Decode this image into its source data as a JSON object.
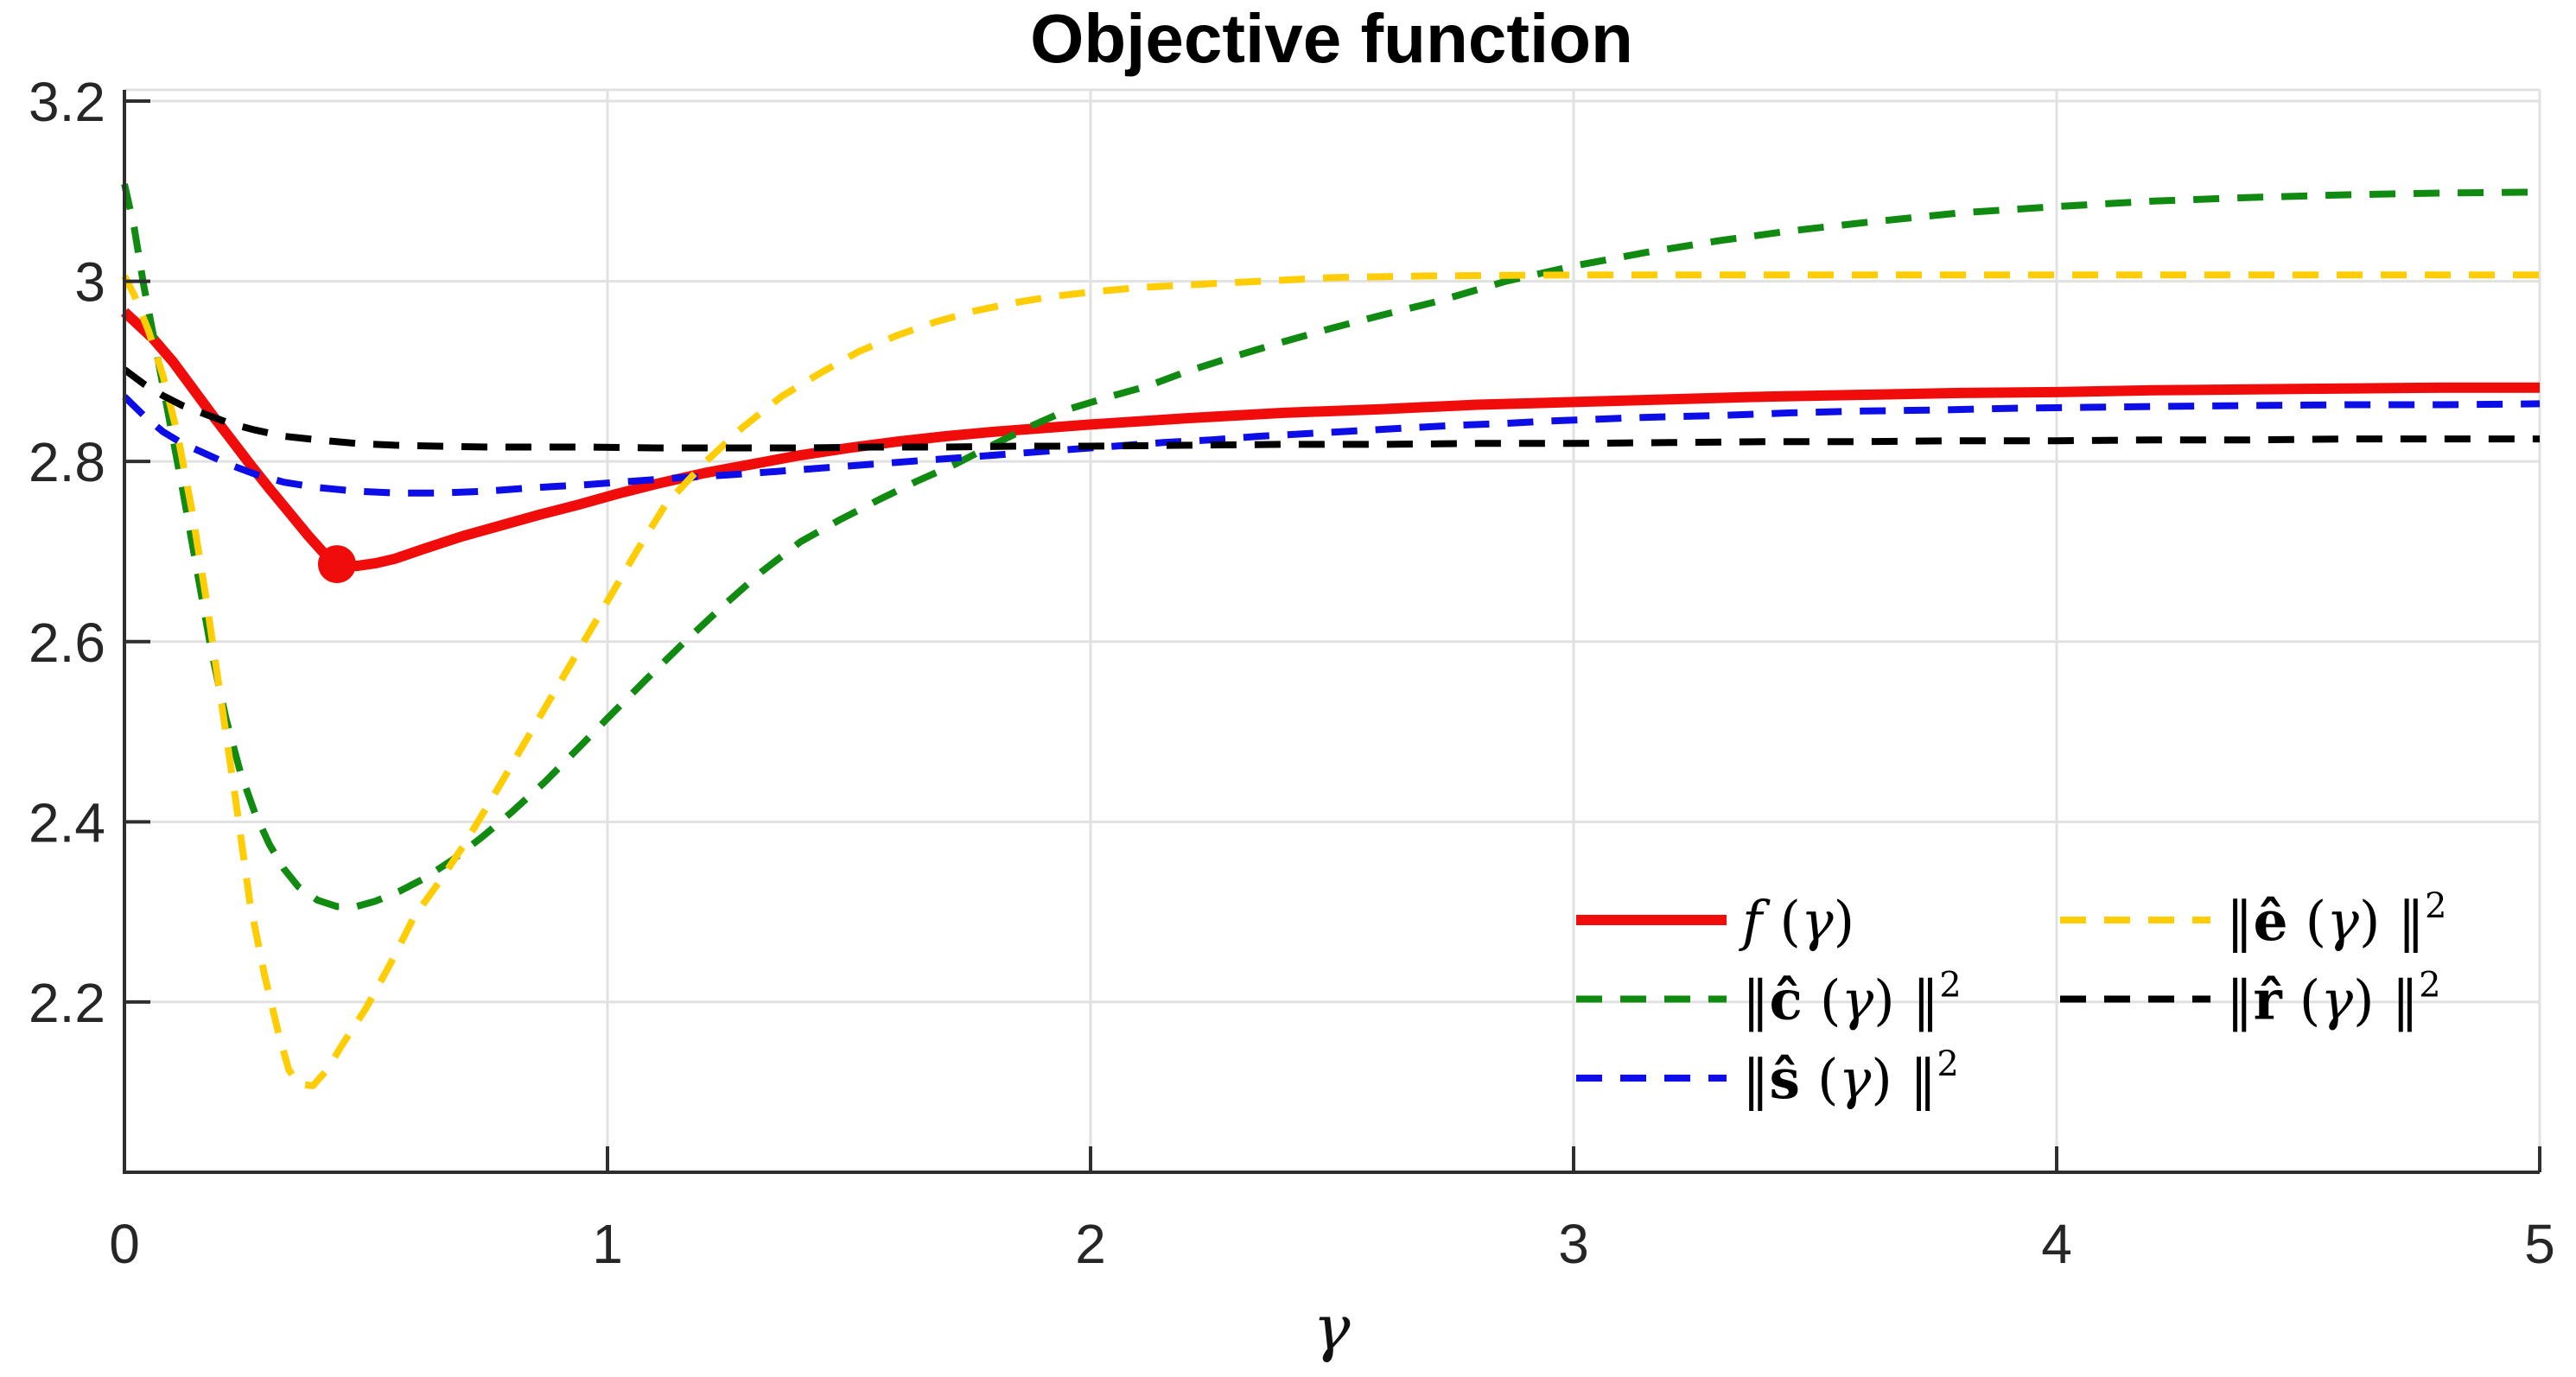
{
  "figure": {
    "background": "#FFFFFF"
  },
  "chart_data": {
    "type": "line",
    "title": "Objective function",
    "xlabel": "γ",
    "ylabel": "",
    "xlim": [
      0,
      5
    ],
    "ylim": [
      2.011,
      3.2125
    ],
    "grid": true,
    "legend_position": "lower right, two columns, no frame",
    "style": {
      "grid_color": "#E1E1E1",
      "axis_color": "#2E2E2E",
      "text_color": "#262626",
      "dash_pattern": "30 21"
    },
    "xticks": [
      {
        "value": 0,
        "label": "0"
      },
      {
        "value": 1,
        "label": "1"
      },
      {
        "value": 2,
        "label": "2"
      },
      {
        "value": 3,
        "label": "3"
      },
      {
        "value": 4,
        "label": "4"
      },
      {
        "value": 5,
        "label": "5"
      }
    ],
    "yticks": [
      {
        "value": 2.2,
        "label": "2.2"
      },
      {
        "value": 2.4,
        "label": "2.4"
      },
      {
        "value": 2.6,
        "label": "2.6"
      },
      {
        "value": 2.8,
        "label": "2.8"
      },
      {
        "value": 3.0,
        "label": "3"
      },
      {
        "value": 3.2,
        "label": "3.2"
      }
    ],
    "marker": {
      "series": "f",
      "x": 0.44,
      "y": 2.686,
      "radius": 22,
      "color": "#F10C0C"
    },
    "series": [
      {
        "id": "f",
        "name": "f(γ)",
        "color": "#F10C0C",
        "dash": "solid",
        "line_width": 12,
        "legend": {
          "column": 1,
          "row": 1,
          "label": "f (γ)",
          "parts": [
            {
              "t": "f",
              "style": "italic"
            },
            {
              "t": " ("
            },
            {
              "t": "γ",
              "style": "italic"
            },
            {
              "t": ")"
            }
          ]
        },
        "points": [
          [
            0,
            2.966
          ],
          [
            0.03,
            2.951
          ],
          [
            0.06,
            2.936
          ],
          [
            0.1,
            2.911
          ],
          [
            0.14,
            2.882
          ],
          [
            0.18,
            2.853
          ],
          [
            0.22,
            2.825
          ],
          [
            0.26,
            2.797
          ],
          [
            0.3,
            2.77
          ],
          [
            0.34,
            2.744
          ],
          [
            0.38,
            2.718
          ],
          [
            0.41,
            2.7
          ],
          [
            0.44,
            2.687
          ],
          [
            0.48,
            2.684
          ],
          [
            0.52,
            2.687
          ],
          [
            0.56,
            2.692
          ],
          [
            0.62,
            2.703
          ],
          [
            0.7,
            2.717
          ],
          [
            0.78,
            2.729
          ],
          [
            0.86,
            2.741
          ],
          [
            0.94,
            2.752
          ],
          [
            1.02,
            2.764
          ],
          [
            1.1,
            2.775
          ],
          [
            1.2,
            2.787
          ],
          [
            1.3,
            2.797
          ],
          [
            1.4,
            2.807
          ],
          [
            1.5,
            2.815
          ],
          [
            1.6,
            2.822
          ],
          [
            1.7,
            2.828
          ],
          [
            1.8,
            2.833
          ],
          [
            1.9,
            2.837
          ],
          [
            2.0,
            2.841
          ],
          [
            2.2,
            2.848
          ],
          [
            2.4,
            2.854
          ],
          [
            2.6,
            2.858
          ],
          [
            2.8,
            2.863
          ],
          [
            3.0,
            2.866
          ],
          [
            3.2,
            2.869
          ],
          [
            3.4,
            2.872
          ],
          [
            3.6,
            2.874
          ],
          [
            3.8,
            2.876
          ],
          [
            4.0,
            2.877
          ],
          [
            4.2,
            2.879
          ],
          [
            4.4,
            2.88
          ],
          [
            4.6,
            2.881
          ],
          [
            4.8,
            2.882
          ],
          [
            5.0,
            2.882
          ]
        ]
      },
      {
        "id": "c_hat",
        "name": "||ĉ(γ)||²",
        "color": "#118A11",
        "dash": "dashed",
        "line_width": 8,
        "legend": {
          "column": 1,
          "row": 2,
          "label": "‖ĉ (γ)‖²",
          "parts": [
            {
              "t": "‖"
            },
            {
              "t": "ĉ",
              "style": "bold"
            },
            {
              "t": " ("
            },
            {
              "t": "γ",
              "style": "italic"
            },
            {
              "t": ") "
            },
            {
              "t": "‖"
            },
            {
              "t": "2",
              "style": "sup"
            }
          ]
        },
        "points": [
          [
            0,
            3.108
          ],
          [
            0.02,
            3.06
          ],
          [
            0.04,
            2.995
          ],
          [
            0.06,
            2.94
          ],
          [
            0.09,
            2.855
          ],
          [
            0.12,
            2.77
          ],
          [
            0.15,
            2.68
          ],
          [
            0.18,
            2.59
          ],
          [
            0.21,
            2.515
          ],
          [
            0.24,
            2.455
          ],
          [
            0.27,
            2.41
          ],
          [
            0.3,
            2.375
          ],
          [
            0.33,
            2.348
          ],
          [
            0.36,
            2.328
          ],
          [
            0.4,
            2.313
          ],
          [
            0.44,
            2.306
          ],
          [
            0.48,
            2.306
          ],
          [
            0.52,
            2.312
          ],
          [
            0.57,
            2.323
          ],
          [
            0.62,
            2.337
          ],
          [
            0.68,
            2.358
          ],
          [
            0.74,
            2.383
          ],
          [
            0.8,
            2.41
          ],
          [
            0.87,
            2.444
          ],
          [
            0.94,
            2.482
          ],
          [
            1.0,
            2.515
          ],
          [
            1.08,
            2.558
          ],
          [
            1.16,
            2.6
          ],
          [
            1.24,
            2.64
          ],
          [
            1.32,
            2.678
          ],
          [
            1.4,
            2.711
          ],
          [
            1.48,
            2.735
          ],
          [
            1.56,
            2.757
          ],
          [
            1.64,
            2.778
          ],
          [
            1.72,
            2.797
          ],
          [
            1.8,
            2.819
          ],
          [
            1.88,
            2.84
          ],
          [
            1.96,
            2.859
          ],
          [
            2.04,
            2.872
          ],
          [
            2.12,
            2.884
          ],
          [
            2.2,
            2.9
          ],
          [
            2.3,
            2.917
          ],
          [
            2.4,
            2.933
          ],
          [
            2.5,
            2.948
          ],
          [
            2.6,
            2.962
          ],
          [
            2.72,
            2.978
          ],
          [
            2.86,
            3.0
          ],
          [
            3.0,
            3.017
          ],
          [
            3.15,
            3.032
          ],
          [
            3.3,
            3.045
          ],
          [
            3.45,
            3.056
          ],
          [
            3.6,
            3.065
          ],
          [
            3.8,
            3.076
          ],
          [
            4.0,
            3.083
          ],
          [
            4.2,
            3.089
          ],
          [
            4.4,
            3.093
          ],
          [
            4.6,
            3.096
          ],
          [
            4.8,
            3.098
          ],
          [
            5.0,
            3.099
          ]
        ]
      },
      {
        "id": "s_hat",
        "name": "||ŝ(γ)||²",
        "color": "#0D0DE8",
        "dash": "dashed",
        "line_width": 8,
        "legend": {
          "column": 1,
          "row": 3,
          "label": "‖ŝ (γ)‖²",
          "parts": [
            {
              "t": "‖"
            },
            {
              "t": "ŝ",
              "style": "bold"
            },
            {
              "t": " ("
            },
            {
              "t": "γ",
              "style": "italic"
            },
            {
              "t": ") "
            },
            {
              "t": "‖"
            },
            {
              "t": "2",
              "style": "sup"
            }
          ]
        },
        "points": [
          [
            0,
            2.872
          ],
          [
            0.04,
            2.851
          ],
          [
            0.08,
            2.833
          ],
          [
            0.12,
            2.82
          ],
          [
            0.17,
            2.808
          ],
          [
            0.22,
            2.796
          ],
          [
            0.27,
            2.786
          ],
          [
            0.33,
            2.777
          ],
          [
            0.4,
            2.771
          ],
          [
            0.48,
            2.767
          ],
          [
            0.56,
            2.765
          ],
          [
            0.65,
            2.765
          ],
          [
            0.75,
            2.767
          ],
          [
            0.85,
            2.771
          ],
          [
            0.95,
            2.774
          ],
          [
            1.05,
            2.778
          ],
          [
            1.15,
            2.782
          ],
          [
            1.25,
            2.785
          ],
          [
            1.35,
            2.789
          ],
          [
            1.45,
            2.793
          ],
          [
            1.55,
            2.797
          ],
          [
            1.65,
            2.801
          ],
          [
            1.75,
            2.805
          ],
          [
            1.85,
            2.809
          ],
          [
            1.95,
            2.813
          ],
          [
            2.05,
            2.817
          ],
          [
            2.15,
            2.821
          ],
          [
            2.25,
            2.824
          ],
          [
            2.35,
            2.828
          ],
          [
            2.45,
            2.831
          ],
          [
            2.55,
            2.834
          ],
          [
            2.65,
            2.837
          ],
          [
            2.75,
            2.84
          ],
          [
            2.85,
            2.842
          ],
          [
            2.95,
            2.845
          ],
          [
            3.05,
            2.847
          ],
          [
            3.15,
            2.849
          ],
          [
            3.3,
            2.851
          ],
          [
            3.45,
            2.854
          ],
          [
            3.6,
            2.856
          ],
          [
            3.75,
            2.857
          ],
          [
            3.9,
            2.859
          ],
          [
            4.05,
            2.86
          ],
          [
            4.2,
            2.861
          ],
          [
            4.4,
            2.862
          ],
          [
            4.6,
            2.863
          ],
          [
            4.8,
            2.863
          ],
          [
            5.0,
            2.864
          ]
        ]
      },
      {
        "id": "e_hat",
        "name": "||ê(γ)||²",
        "color": "#FFCD06",
        "dash": "dashed",
        "line_width": 8,
        "legend": {
          "column": 2,
          "row": 1,
          "label": "‖ê (γ)‖²",
          "parts": [
            {
              "t": "‖"
            },
            {
              "t": "ê",
              "style": "bold"
            },
            {
              "t": " ("
            },
            {
              "t": "γ",
              "style": "italic"
            },
            {
              "t": ") "
            },
            {
              "t": "‖"
            },
            {
              "t": "2",
              "style": "sup"
            }
          ]
        },
        "points": [
          [
            0,
            3.006
          ],
          [
            0.02,
            2.985
          ],
          [
            0.05,
            2.945
          ],
          [
            0.08,
            2.895
          ],
          [
            0.11,
            2.83
          ],
          [
            0.14,
            2.745
          ],
          [
            0.17,
            2.645
          ],
          [
            0.2,
            2.535
          ],
          [
            0.23,
            2.425
          ],
          [
            0.26,
            2.31
          ],
          [
            0.29,
            2.23
          ],
          [
            0.32,
            2.163
          ],
          [
            0.34,
            2.125
          ],
          [
            0.36,
            2.109
          ],
          [
            0.39,
            2.107
          ],
          [
            0.42,
            2.125
          ],
          [
            0.45,
            2.152
          ],
          [
            0.5,
            2.193
          ],
          [
            0.55,
            2.242
          ],
          [
            0.6,
            2.295
          ],
          [
            0.65,
            2.332
          ],
          [
            0.7,
            2.372
          ],
          [
            0.76,
            2.425
          ],
          [
            0.82,
            2.48
          ],
          [
            0.88,
            2.535
          ],
          [
            0.94,
            2.59
          ],
          [
            1.0,
            2.645
          ],
          [
            1.06,
            2.7
          ],
          [
            1.12,
            2.752
          ],
          [
            1.2,
            2.798
          ],
          [
            1.28,
            2.838
          ],
          [
            1.36,
            2.872
          ],
          [
            1.44,
            2.898
          ],
          [
            1.52,
            2.922
          ],
          [
            1.6,
            2.94
          ],
          [
            1.68,
            2.955
          ],
          [
            1.76,
            2.967
          ],
          [
            1.84,
            2.976
          ],
          [
            1.92,
            2.983
          ],
          [
            2.0,
            2.988
          ],
          [
            2.1,
            2.993
          ],
          [
            2.2,
            2.996
          ],
          [
            2.35,
            3.0
          ],
          [
            2.5,
            3.004
          ],
          [
            2.7,
            3.006
          ],
          [
            3.0,
            3.007
          ],
          [
            3.5,
            3.007
          ],
          [
            4.0,
            3.007
          ],
          [
            4.5,
            3.007
          ],
          [
            5.0,
            3.007
          ]
        ]
      },
      {
        "id": "r_hat",
        "name": "||r̂(γ)||²",
        "color": "#000000",
        "dash": "dashed",
        "line_width": 8,
        "legend": {
          "column": 2,
          "row": 2,
          "label": "‖r̂ (γ)‖²",
          "parts": [
            {
              "t": "‖"
            },
            {
              "t": "r̂",
              "style": "bold"
            },
            {
              "t": " ("
            },
            {
              "t": "γ",
              "style": "italic"
            },
            {
              "t": ") "
            },
            {
              "t": "‖"
            },
            {
              "t": "2",
              "style": "sup"
            }
          ]
        },
        "points": [
          [
            0,
            2.902
          ],
          [
            0.04,
            2.886
          ],
          [
            0.08,
            2.873
          ],
          [
            0.12,
            2.862
          ],
          [
            0.17,
            2.852
          ],
          [
            0.22,
            2.842
          ],
          [
            0.27,
            2.835
          ],
          [
            0.33,
            2.828
          ],
          [
            0.4,
            2.824
          ],
          [
            0.48,
            2.82
          ],
          [
            0.56,
            2.818
          ],
          [
            0.65,
            2.817
          ],
          [
            0.75,
            2.816
          ],
          [
            0.85,
            2.816
          ],
          [
            0.95,
            2.816
          ],
          [
            1.1,
            2.815
          ],
          [
            1.25,
            2.815
          ],
          [
            1.4,
            2.815
          ],
          [
            1.55,
            2.816
          ],
          [
            1.7,
            2.816
          ],
          [
            1.85,
            2.817
          ],
          [
            2.0,
            2.817
          ],
          [
            2.2,
            2.818
          ],
          [
            2.4,
            2.819
          ],
          [
            2.6,
            2.819
          ],
          [
            2.8,
            2.82
          ],
          [
            3.0,
            2.82
          ],
          [
            3.2,
            2.821
          ],
          [
            3.4,
            2.822
          ],
          [
            3.6,
            2.822
          ],
          [
            3.8,
            2.823
          ],
          [
            4.0,
            2.823
          ],
          [
            4.2,
            2.824
          ],
          [
            4.4,
            2.824
          ],
          [
            4.6,
            2.825
          ],
          [
            4.8,
            2.825
          ],
          [
            5.0,
            2.825
          ]
        ]
      }
    ]
  }
}
